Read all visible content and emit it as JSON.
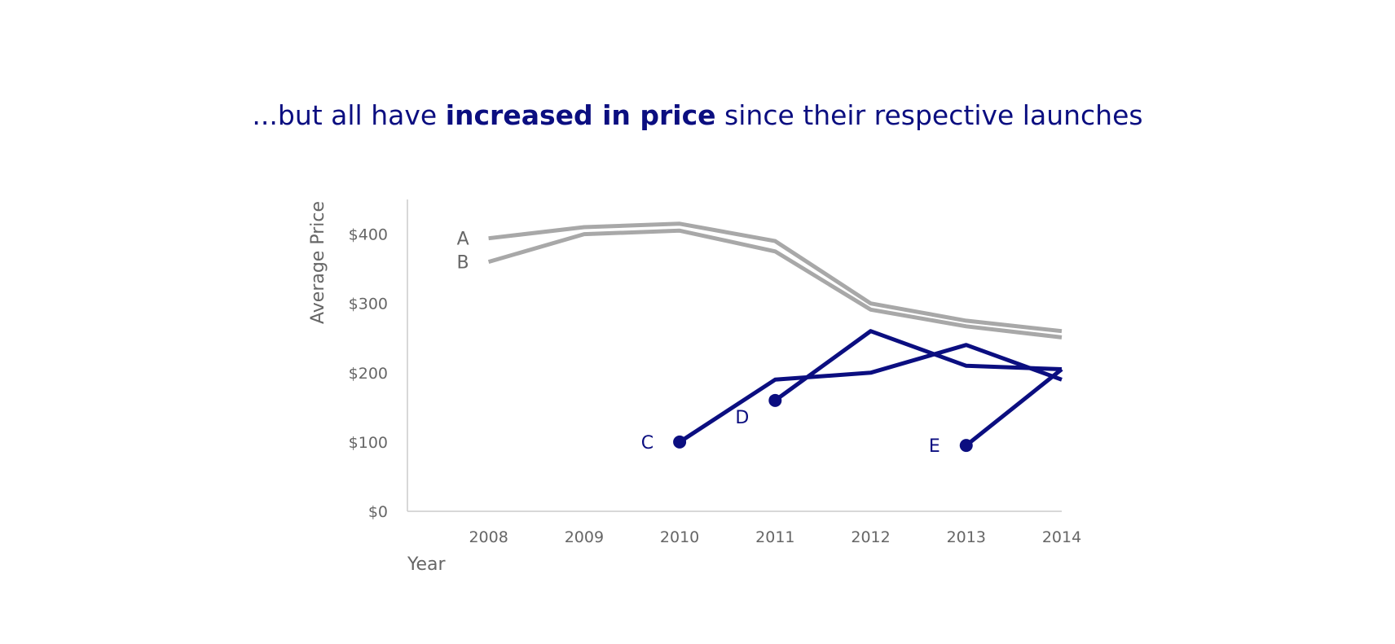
{
  "title": {
    "prefix": "...but all have ",
    "emphasis": "increased in price",
    "suffix": " since their respective launches"
  },
  "chart_data": {
    "type": "line",
    "title": "...but all have increased in price since their respective launches",
    "xlabel": "Year",
    "ylabel": "Average Price",
    "x": [
      2008,
      2009,
      2010,
      2011,
      2012,
      2013,
      2014
    ],
    "xlim": [
      2007.15,
      2014
    ],
    "ylim": [
      0,
      450
    ],
    "yticks": [
      0,
      100,
      200,
      300,
      400
    ],
    "ytick_labels": [
      "$0",
      "$100",
      "$200",
      "$300",
      "$400"
    ],
    "xtick_labels": [
      "2008",
      "2009",
      "2010",
      "2011",
      "2012",
      "2013",
      "2014"
    ],
    "grid": false,
    "legend": "none",
    "colors": {
      "muted": "#a8a8a8",
      "highlight": "#0b0e80",
      "axis": "#cccccc",
      "text": "#666666"
    },
    "series": [
      {
        "name": "A",
        "x": [
          2008,
          2009,
          2010,
          2011,
          2012,
          2013,
          2014
        ],
        "values": [
          394,
          410,
          415,
          390,
          300,
          275,
          260
        ],
        "color_key": "muted",
        "start_marker": false
      },
      {
        "name": "B",
        "x": [
          2008,
          2009,
          2010,
          2011,
          2012,
          2013,
          2014
        ],
        "values": [
          360,
          400,
          405,
          375,
          291,
          267,
          251
        ],
        "color_key": "muted",
        "start_marker": false
      },
      {
        "name": "C",
        "x": [
          2010,
          2011,
          2012,
          2013,
          2014
        ],
        "values": [
          100,
          190,
          200,
          240,
          190
        ],
        "color_key": "highlight",
        "start_marker": true
      },
      {
        "name": "D",
        "x": [
          2011,
          2012,
          2013,
          2014
        ],
        "values": [
          160,
          260,
          210,
          205
        ],
        "color_key": "highlight",
        "start_marker": true
      },
      {
        "name": "E",
        "x": [
          2013,
          2014
        ],
        "values": [
          95,
          205
        ],
        "color_key": "highlight",
        "start_marker": true
      }
    ]
  }
}
